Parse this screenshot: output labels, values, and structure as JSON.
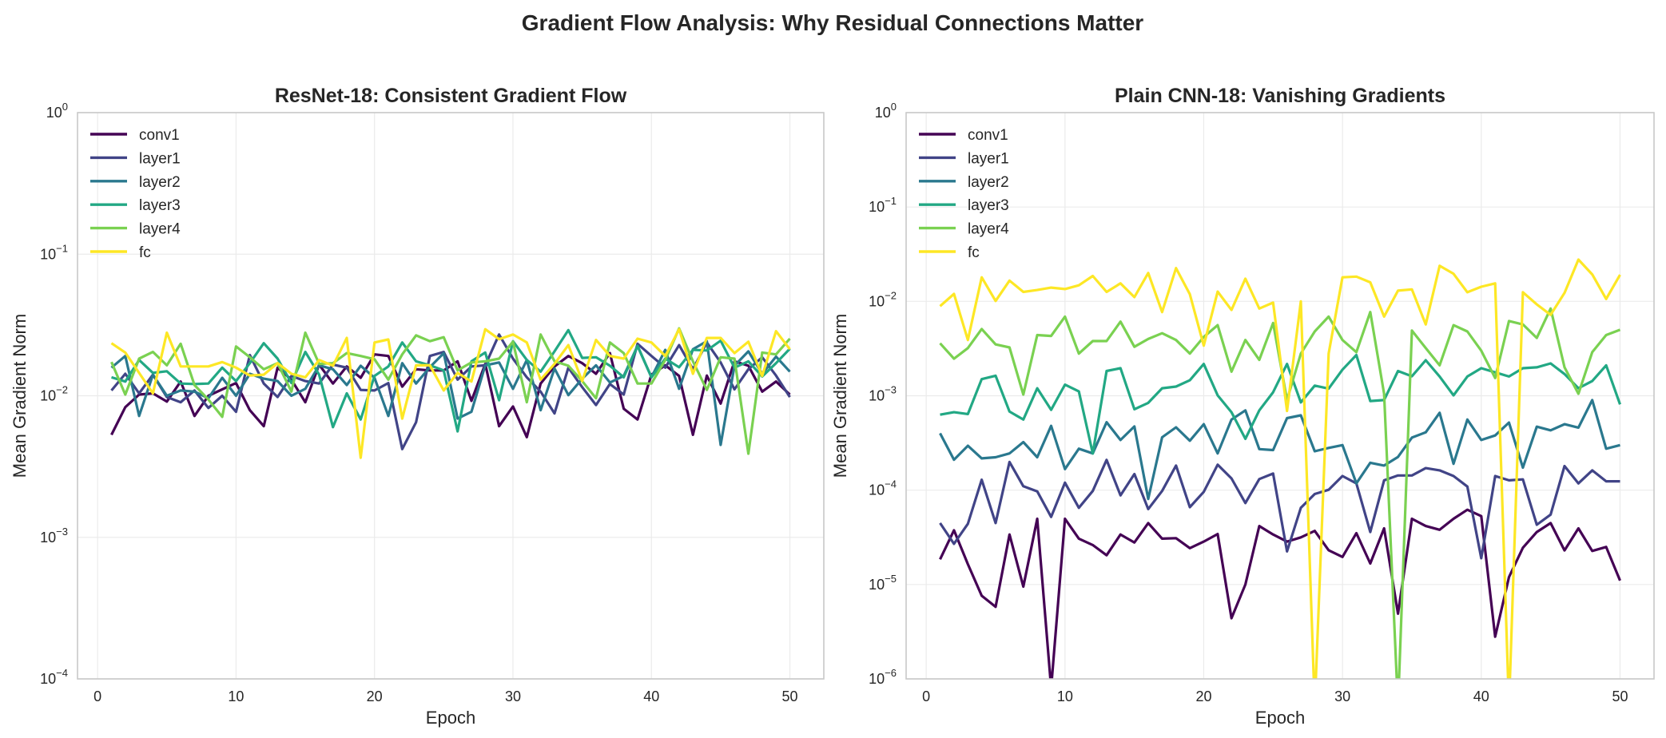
{
  "title": "Gradient Flow Analysis: Why Residual Connections Matter",
  "chart_data": [
    {
      "type": "line",
      "title": "ResNet-18: Consistent Gradient Flow",
      "xlabel": "Epoch",
      "ylabel": "Mean Gradient Norm",
      "yscale": "log",
      "xlim": [
        -1.45,
        52.45
      ],
      "ylim": [
        0.0001,
        1
      ],
      "xticks": [
        0,
        10,
        20,
        30,
        40,
        50
      ],
      "yticks_exponents": [
        -4,
        -3,
        -2,
        -1,
        0
      ],
      "grid": true,
      "legend": "upper-left",
      "x": [
        1,
        2,
        3,
        4,
        5,
        6,
        7,
        8,
        9,
        10,
        11,
        12,
        13,
        14,
        15,
        16,
        17,
        18,
        19,
        20,
        21,
        22,
        23,
        24,
        25,
        26,
        27,
        28,
        29,
        30,
        31,
        32,
        33,
        34,
        35,
        36,
        37,
        38,
        39,
        40,
        41,
        42,
        43,
        44,
        45,
        46,
        47,
        48,
        49,
        50
      ],
      "series": [
        {
          "name": "conv1",
          "color": "#440154",
          "values": [
            0.0053,
            0.0083,
            0.0102,
            0.0104,
            0.0091,
            0.0126,
            0.0072,
            0.01,
            0.0111,
            0.0123,
            0.0079,
            0.0061,
            0.0158,
            0.013,
            0.009,
            0.0166,
            0.0122,
            0.0161,
            0.0134,
            0.0196,
            0.0191,
            0.0116,
            0.0154,
            0.0151,
            0.0151,
            0.0175,
            0.0092,
            0.0168,
            0.0061,
            0.0084,
            0.0051,
            0.0122,
            0.0161,
            0.0191,
            0.017,
            0.0143,
            0.02,
            0.0081,
            0.0068,
            0.0141,
            0.0164,
            0.0138,
            0.0053,
            0.0139,
            0.0088,
            0.0175,
            0.0163,
            0.0107,
            0.0126,
            0.0102
          ]
        },
        {
          "name": "layer1",
          "color": "#414487",
          "values": [
            0.0109,
            0.0143,
            0.0104,
            0.0141,
            0.0098,
            0.009,
            0.0109,
            0.0082,
            0.01,
            0.0077,
            0.0194,
            0.0122,
            0.0098,
            0.0138,
            0.0127,
            0.0122,
            0.0166,
            0.0158,
            0.011,
            0.0109,
            0.0123,
            0.0042,
            0.0065,
            0.0191,
            0.0204,
            0.013,
            0.0161,
            0.0164,
            0.0271,
            0.0183,
            0.0135,
            0.0107,
            0.0075,
            0.0158,
            0.0115,
            0.0086,
            0.0121,
            0.0102,
            0.0233,
            0.0191,
            0.0158,
            0.0228,
            0.0154,
            0.0238,
            0.0172,
            0.0111,
            0.0154,
            0.0187,
            0.0139,
            0.0098
          ]
        },
        {
          "name": "layer2",
          "color": "#2a788e",
          "values": [
            0.0158,
            0.0191,
            0.0072,
            0.0141,
            0.01,
            0.0109,
            0.0107,
            0.0096,
            0.0134,
            0.01,
            0.0143,
            0.0132,
            0.0127,
            0.01,
            0.0112,
            0.0164,
            0.0154,
            0.0119,
            0.0163,
            0.0134,
            0.0072,
            0.017,
            0.0122,
            0.0159,
            0.02,
            0.0069,
            0.0077,
            0.0164,
            0.0172,
            0.0112,
            0.0179,
            0.0079,
            0.0156,
            0.0101,
            0.0132,
            0.0164,
            0.0124,
            0.0138,
            0.0225,
            0.0135,
            0.0211,
            0.0112,
            0.0213,
            0.0243,
            0.0045,
            0.0163,
            0.0206,
            0.0143,
            0.0189,
            0.0148
          ]
        },
        {
          "name": "layer3",
          "color": "#22a884",
          "values": [
            0.0135,
            0.0126,
            0.0179,
            0.0145,
            0.0149,
            0.0122,
            0.0121,
            0.0122,
            0.0158,
            0.0127,
            0.017,
            0.0235,
            0.0183,
            0.0123,
            0.0204,
            0.0141,
            0.006,
            0.0104,
            0.0068,
            0.0138,
            0.0161,
            0.0238,
            0.0175,
            0.0164,
            0.0151,
            0.0056,
            0.0175,
            0.0202,
            0.0093,
            0.0243,
            0.0179,
            0.0148,
            0.0206,
            0.0291,
            0.0185,
            0.0187,
            0.0163,
            0.0135,
            0.0225,
            0.0135,
            0.0183,
            0.0159,
            0.0211,
            0.0209,
            0.0245,
            0.0158,
            0.0175,
            0.0137,
            0.017,
            0.0215
          ]
        },
        {
          "name": "layer4",
          "color": "#7ad151",
          "values": [
            0.0173,
            0.0102,
            0.0183,
            0.0204,
            0.0164,
            0.0233,
            0.0119,
            0.0094,
            0.0071,
            0.0223,
            0.0187,
            0.0154,
            0.017,
            0.0107,
            0.0279,
            0.0168,
            0.017,
            0.02,
            0.0191,
            0.0181,
            0.013,
            0.0196,
            0.0267,
            0.0243,
            0.0259,
            0.0151,
            0.0172,
            0.0175,
            0.0183,
            0.0241,
            0.009,
            0.0271,
            0.0175,
            0.0163,
            0.0127,
            0.0096,
            0.0238,
            0.02,
            0.0122,
            0.0122,
            0.0179,
            0.0299,
            0.0175,
            0.011,
            0.0187,
            0.0183,
            0.0039,
            0.0202,
            0.0196,
            0.0253
          ]
        },
        {
          "name": "fc",
          "color": "#fde725",
          "values": [
            0.0235,
            0.0202,
            0.0145,
            0.0104,
            0.0279,
            0.0161,
            0.0161,
            0.0161,
            0.0173,
            0.0158,
            0.0139,
            0.0141,
            0.017,
            0.0143,
            0.0135,
            0.0179,
            0.0163,
            0.0256,
            0.00365,
            0.0238,
            0.025,
            0.0069,
            0.0164,
            0.0164,
            0.0109,
            0.0145,
            0.0126,
            0.0295,
            0.0251,
            0.0271,
            0.0238,
            0.013,
            0.0168,
            0.0228,
            0.0127,
            0.0248,
            0.0191,
            0.0183,
            0.0253,
            0.0238,
            0.0191,
            0.0295,
            0.0143,
            0.0256,
            0.0256,
            0.02,
            0.0241,
            0.0138,
            0.0286,
            0.0213
          ]
        }
      ]
    },
    {
      "type": "line",
      "title": "Plain CNN-18: Vanishing Gradients",
      "xlabel": "Epoch",
      "ylabel": "Mean Gradient Norm",
      "yscale": "log",
      "xlim": [
        -1.45,
        52.45
      ],
      "ylim": [
        1e-06,
        1
      ],
      "xticks": [
        0,
        10,
        20,
        30,
        40,
        50
      ],
      "yticks_exponents": [
        -6,
        -5,
        -4,
        -3,
        -2,
        -1,
        0
      ],
      "grid": true,
      "legend": "upper-left",
      "x": [
        1,
        2,
        3,
        4,
        5,
        6,
        7,
        8,
        9,
        10,
        11,
        12,
        13,
        14,
        15,
        16,
        17,
        18,
        19,
        20,
        21,
        22,
        23,
        24,
        25,
        26,
        27,
        28,
        29,
        30,
        31,
        32,
        33,
        34,
        35,
        36,
        37,
        38,
        39,
        40,
        41,
        42,
        43,
        44,
        45,
        46,
        47,
        48,
        49,
        50
      ],
      "series": [
        {
          "name": "conv1",
          "color": "#440154",
          "values": [
            1.85e-05,
            3.76e-05,
            1.64e-05,
            7.6e-06,
            5.8e-06,
            3.39e-05,
            9.5e-06,
            4.97e-05,
            8e-07,
            4.97e-05,
            3.06e-05,
            2.62e-05,
            2.04e-05,
            3.39e-05,
            2.79e-05,
            4.48e-05,
            3.06e-05,
            3.1e-05,
            2.43e-05,
            2.85e-05,
            3.43e-05,
            4.4e-06,
            1e-05,
            4.17e-05,
            3.39e-05,
            2.85e-05,
            3.16e-05,
            3.7e-05,
            2.31e-05,
            1.96e-05,
            3.5e-05,
            1.67e-05,
            3.94e-05,
            4.9e-06,
            4.97e-05,
            4.17e-05,
            3.8e-05,
            4.97e-05,
            6.2e-05,
            5.3e-05,
            2.8e-06,
            1.2e-05,
            2.45e-05,
            3.6e-05,
            4.48e-05,
            2.3e-05,
            3.94e-05,
            2.27e-05,
            2.5e-05,
            1.1e-05
          ]
        },
        {
          "name": "layer1",
          "color": "#414487",
          "values": [
            4.48e-05,
            2.7e-05,
            4.4e-05,
            0.000129,
            4.48e-05,
            0.000199,
            0.00011,
            9.7e-05,
            5.2e-05,
            0.00012,
            6.5e-05,
            9.8e-05,
            0.000209,
            8.8e-05,
            0.000148,
            6.3e-05,
            9.8e-05,
            0.000182,
            6.6e-05,
            9.6e-05,
            0.000186,
            0.000133,
            7.3e-05,
            0.000131,
            0.00015,
            2.24e-05,
            6.5e-05,
            9.1e-05,
            0.000101,
            0.000141,
            0.000118,
            3.6e-05,
            0.000127,
            0.000143,
            0.000143,
            0.000171,
            0.000162,
            0.000141,
            0.000109,
            1.9e-05,
            0.000141,
            0.000127,
            0.00013,
            4.3e-05,
            5.5e-05,
            0.00018,
            0.000118,
            0.000162,
            0.000124,
            0.000124
          ]
        },
        {
          "name": "layer2",
          "color": "#2a788e",
          "values": [
            0.0004,
            0.00021,
            0.000295,
            0.000217,
            0.000223,
            0.000245,
            0.000323,
            0.000223,
            0.00048,
            0.000167,
            0.000275,
            0.000245,
            0.000525,
            0.00034,
            0.000473,
            8.07e-05,
            0.000363,
            0.000463,
            0.000334,
            0.0005,
            0.000245,
            0.00056,
            0.0007,
            0.000272,
            0.000266,
            0.00058,
            0.00062,
            0.000258,
            0.00028,
            0.0003,
            0.000118,
            0.000195,
            0.000182,
            0.000225,
            0.00036,
            0.00041,
            0.00066,
            0.00019,
            0.00056,
            0.00034,
            0.00038,
            0.00052,
            0.000173,
            0.00047,
            0.00043,
            0.0005,
            0.00046,
            0.0009,
            0.000275,
            0.0003
          ]
        },
        {
          "name": "layer3",
          "color": "#22a884",
          "values": [
            0.00063,
            0.00067,
            0.00064,
            0.0015,
            0.00163,
            0.00068,
            0.00056,
            0.0012,
            0.00071,
            0.00131,
            0.00111,
            0.000245,
            0.00183,
            0.00196,
            0.00072,
            0.00084,
            0.0012,
            0.00125,
            0.00146,
            0.00217,
            0.00101,
            0.00067,
            0.00035,
            0.0007,
            0.00109,
            0.00217,
            0.00085,
            0.00128,
            0.00119,
            0.00189,
            0.0027,
            0.00088,
            0.0009,
            0.00183,
            0.00161,
            0.00238,
            0.0016,
            0.00101,
            0.0016,
            0.00196,
            0.00177,
            0.0016,
            0.00196,
            0.002,
            0.0022,
            0.0017,
            0.0012,
            0.00143,
            0.0021,
            0.00081
          ]
        },
        {
          "name": "layer4",
          "color": "#7ad151",
          "values": [
            0.0036,
            0.00247,
            0.0032,
            0.0051,
            0.0035,
            0.00325,
            0.00103,
            0.0044,
            0.0043,
            0.0069,
            0.0028,
            0.0038,
            0.0038,
            0.0061,
            0.0033,
            0.004,
            0.0046,
            0.0039,
            0.0028,
            0.0042,
            0.0056,
            0.0018,
            0.0039,
            0.0024,
            0.0059,
            0.0009,
            0.0028,
            0.0048,
            0.0069,
            0.0039,
            0.0029,
            0.0077,
            0.00105,
            5e-07,
            0.0049,
            0.0032,
            0.0021,
            0.0056,
            0.0048,
            0.003,
            0.00154,
            0.0062,
            0.0057,
            0.0041,
            0.0084,
            0.002,
            0.00105,
            0.0029,
            0.0044,
            0.005
          ]
        },
        {
          "name": "fc",
          "color": "#fde725",
          "values": [
            0.0089,
            0.012,
            0.0039,
            0.018,
            0.0101,
            0.0166,
            0.0126,
            0.0132,
            0.014,
            0.0135,
            0.0148,
            0.0186,
            0.0126,
            0.0155,
            0.0111,
            0.02,
            0.0077,
            0.0225,
            0.0119,
            0.0034,
            0.0127,
            0.0081,
            0.0174,
            0.0084,
            0.0097,
            0.00069,
            0.01,
            5e-07,
            0.0028,
            0.018,
            0.0183,
            0.0159,
            0.0069,
            0.013,
            0.0134,
            0.0057,
            0.0238,
            0.0196,
            0.0125,
            0.0143,
            0.0155,
            5e-07,
            0.0125,
            0.0093,
            0.0072,
            0.0123,
            0.0277,
            0.0193,
            0.0106,
            0.0191
          ]
        }
      ]
    }
  ]
}
